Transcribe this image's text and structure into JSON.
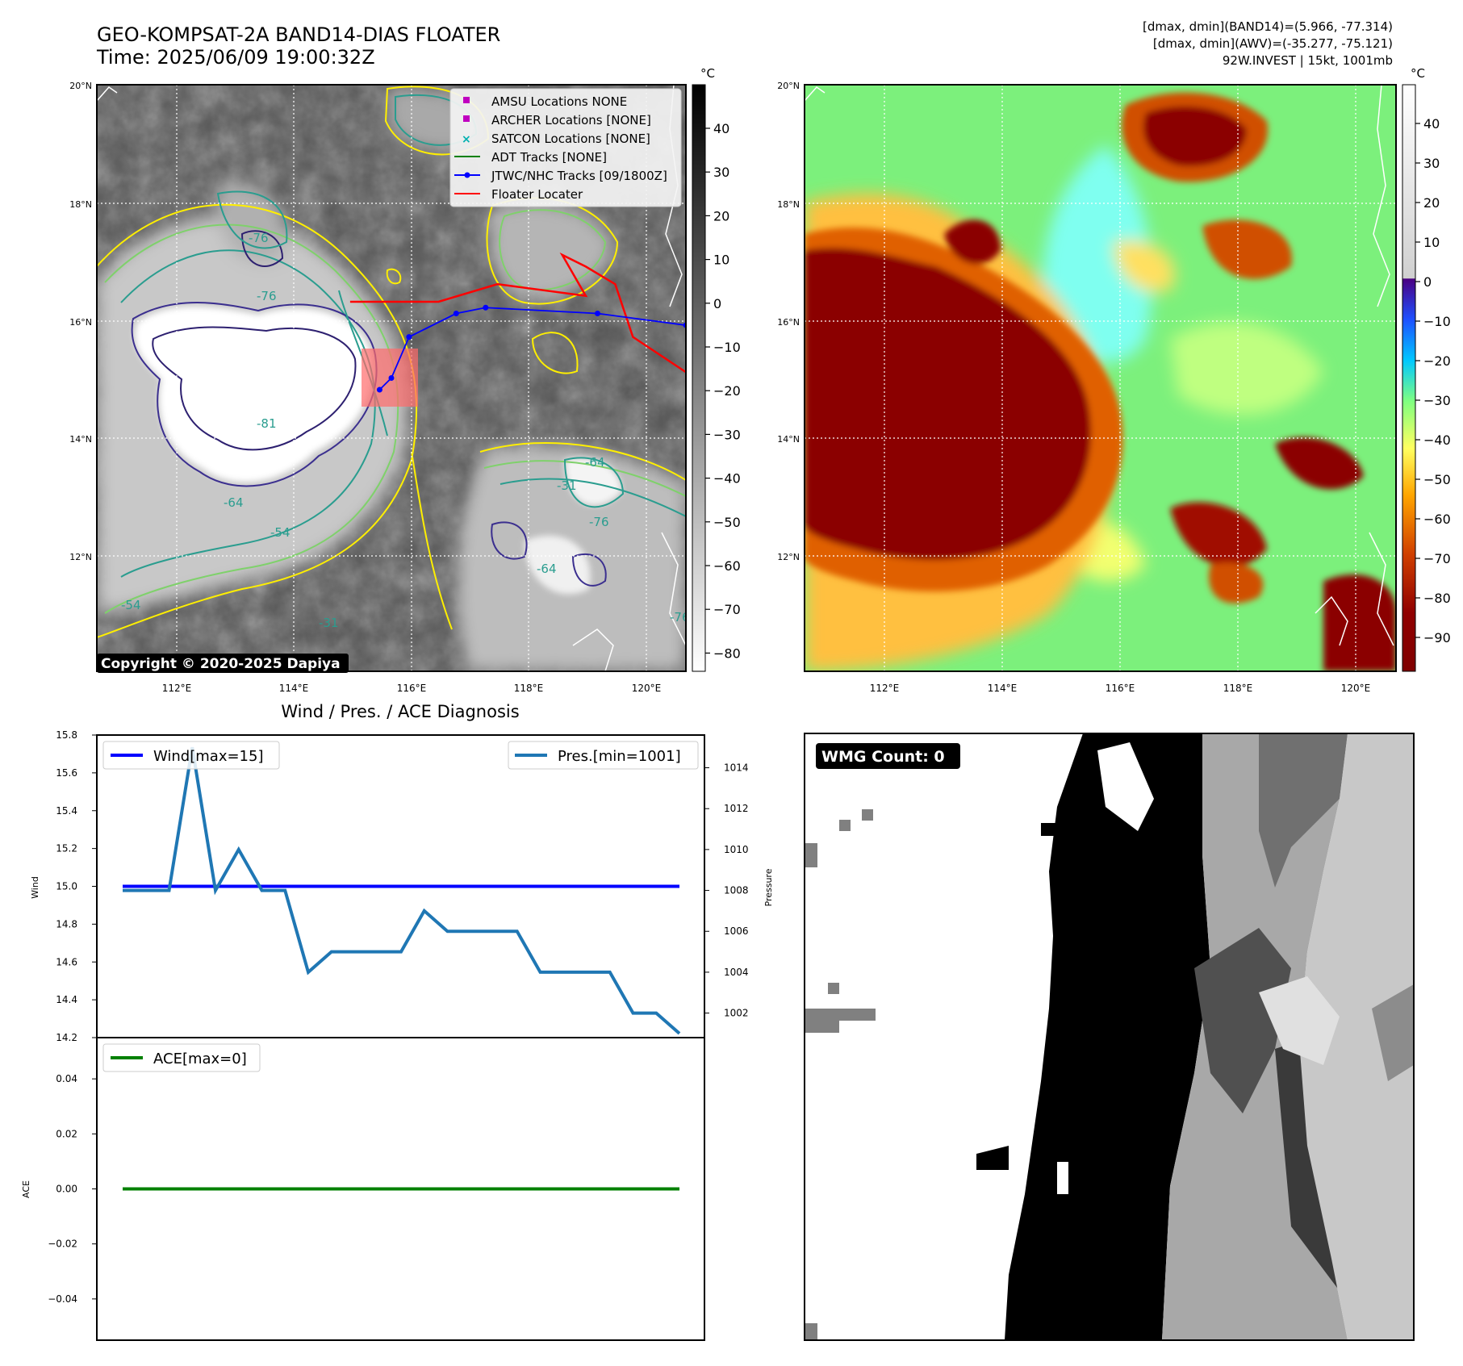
{
  "header": {
    "title_line1": "GEO-KOMPSAT-2A BAND14-DIAS FLOATER",
    "title_line2": "Time: 2025/06/09 19:00:32Z",
    "stats_line1": "[dmax, dmin](BAND14)=(5.966, -77.314)",
    "stats_line2": "[dmax, dmin](AWV)=(-35.277, -75.121)",
    "stats_line3": "92W.INVEST | 15kt, 1001mb"
  },
  "maps": {
    "lat_labels": [
      "20°N",
      "18°N",
      "16°N",
      "14°N",
      "12°N"
    ],
    "lon_labels": [
      "112°E",
      "114°E",
      "116°E",
      "118°E",
      "120°E"
    ],
    "copyright": "Copyright © 2020-2025 Dapiya",
    "contour_labels": [
      "-76",
      "-76",
      "-81",
      "-64",
      "-54",
      "-54",
      "-31",
      "-64",
      "-76",
      "-64",
      "-76",
      "-31"
    ]
  },
  "ir_colorbar": {
    "unit": "°C",
    "ticks": [
      "40",
      "30",
      "20",
      "10",
      "0",
      "−10",
      "−20",
      "−30",
      "−40",
      "−50",
      "−60",
      "−70",
      "−80"
    ]
  },
  "enh_colorbar": {
    "unit": "°C",
    "ticks": [
      "40",
      "30",
      "20",
      "10",
      "0",
      "−10",
      "−20",
      "−30",
      "−40",
      "−50",
      "−60",
      "−70",
      "−80",
      "−90"
    ]
  },
  "legend": {
    "items": [
      {
        "label": "AMSU Locations NONE",
        "color": "#c000c0",
        "kind": "square"
      },
      {
        "label": "ARCHER Locations [NONE]",
        "color": "#c000c0",
        "kind": "square"
      },
      {
        "label": "SATCON Locations [NONE]",
        "color": "#00b0b0",
        "kind": "x"
      },
      {
        "label": "ADT Tracks [NONE]",
        "color": "#008000",
        "kind": "line"
      },
      {
        "label": "JTWC/NHC Tracks [09/1800Z]",
        "color": "#0000ff",
        "kind": "line-dot"
      },
      {
        "label": "Floater Locater",
        "color": "#ff0000",
        "kind": "line"
      }
    ]
  },
  "diag": {
    "title": "Wind / Pres. / ACE Diagnosis",
    "wind_ticks": [
      "15.8",
      "15.6",
      "15.4",
      "15.2",
      "15.0",
      "14.8",
      "14.6",
      "14.4",
      "14.2"
    ],
    "pres_ticks": [
      "1014",
      "1012",
      "1010",
      "1008",
      "1006",
      "1004",
      "1002"
    ],
    "ace_ticks": [
      "0.04",
      "0.02",
      "0.00",
      "−0.02",
      "−0.04"
    ],
    "wind_axis_label": "Wind",
    "pres_axis_label": "Pressure",
    "ace_axis_label": "ACE",
    "wind_legend": "Wind[max=15]",
    "pres_legend": "Pres.[min=1001]",
    "ace_legend": "ACE[max=0]",
    "wind_color": "#0000ff",
    "pres_color": "#1f77b4",
    "ace_color": "#008000"
  },
  "wmg": {
    "badge": "WMG Count: 0"
  },
  "chart_data": [
    {
      "type": "line",
      "title": "Wind / Pres. / ACE Diagnosis",
      "ylabel": "Wind",
      "ylim": [
        14.2,
        15.8
      ],
      "series": [
        {
          "name": "Wind[max=15]",
          "x": [
            0,
            1,
            2,
            3,
            4,
            5,
            6,
            7,
            8,
            9,
            10,
            11,
            12,
            13,
            14,
            15,
            16,
            17,
            18,
            19,
            20,
            21,
            22,
            23,
            24
          ],
          "values": [
            15,
            15,
            15,
            15,
            15,
            15,
            15,
            15,
            15,
            15,
            15,
            15,
            15,
            15,
            15,
            15,
            15,
            15,
            15,
            15,
            15,
            15,
            15,
            15,
            15
          ]
        }
      ]
    },
    {
      "type": "line",
      "ylabel": "Pressure",
      "ylim": [
        1000.8,
        1015.6
      ],
      "series": [
        {
          "name": "Pres.[min=1001]",
          "x": [
            0,
            1,
            2,
            3,
            4,
            5,
            6,
            7,
            8,
            9,
            10,
            11,
            12,
            13,
            14,
            15,
            16,
            17,
            18,
            19,
            20,
            21,
            22,
            23,
            24
          ],
          "values": [
            1008,
            1008,
            1008,
            1015,
            1008,
            1010,
            1008,
            1008,
            1004,
            1005,
            1005,
            1005,
            1005,
            1007,
            1006,
            1006,
            1006,
            1006,
            1004,
            1004,
            1004,
            1004,
            1002,
            1002,
            1001
          ]
        }
      ]
    },
    {
      "type": "line",
      "ylabel": "ACE",
      "ylim": [
        -0.055,
        0.055
      ],
      "series": [
        {
          "name": "ACE[max=0]",
          "x": [
            0,
            1,
            2,
            3,
            4,
            5,
            6,
            7,
            8,
            9,
            10,
            11,
            12,
            13,
            14,
            15,
            16,
            17,
            18,
            19,
            20,
            21,
            22,
            23,
            24
          ],
          "values": [
            0,
            0,
            0,
            0,
            0,
            0,
            0,
            0,
            0,
            0,
            0,
            0,
            0,
            0,
            0,
            0,
            0,
            0,
            0,
            0,
            0,
            0,
            0,
            0,
            0
          ]
        }
      ]
    },
    {
      "type": "line",
      "xlabel": "",
      "ylabel": "",
      "xlim": [
        110.7,
        120.7
      ],
      "ylim": [
        10.2,
        20.2
      ],
      "series": [
        {
          "name": "JTWC/NHC Tracks [09/1800Z]",
          "x": [
            115.5,
            115.7,
            116.0,
            116.8,
            117.3,
            119.2,
            120.7
          ],
          "y": [
            15.0,
            15.2,
            15.9,
            16.3,
            16.4,
            16.3,
            16.1
          ]
        },
        {
          "name": "Floater Locater",
          "x": [
            115.0,
            116.5,
            117.5,
            119.0,
            118.6,
            119.0,
            119.5,
            119.8,
            120.7
          ],
          "y": [
            16.5,
            16.5,
            16.8,
            16.6,
            17.3,
            17.1,
            16.8,
            15.9,
            15.3
          ]
        }
      ]
    }
  ]
}
